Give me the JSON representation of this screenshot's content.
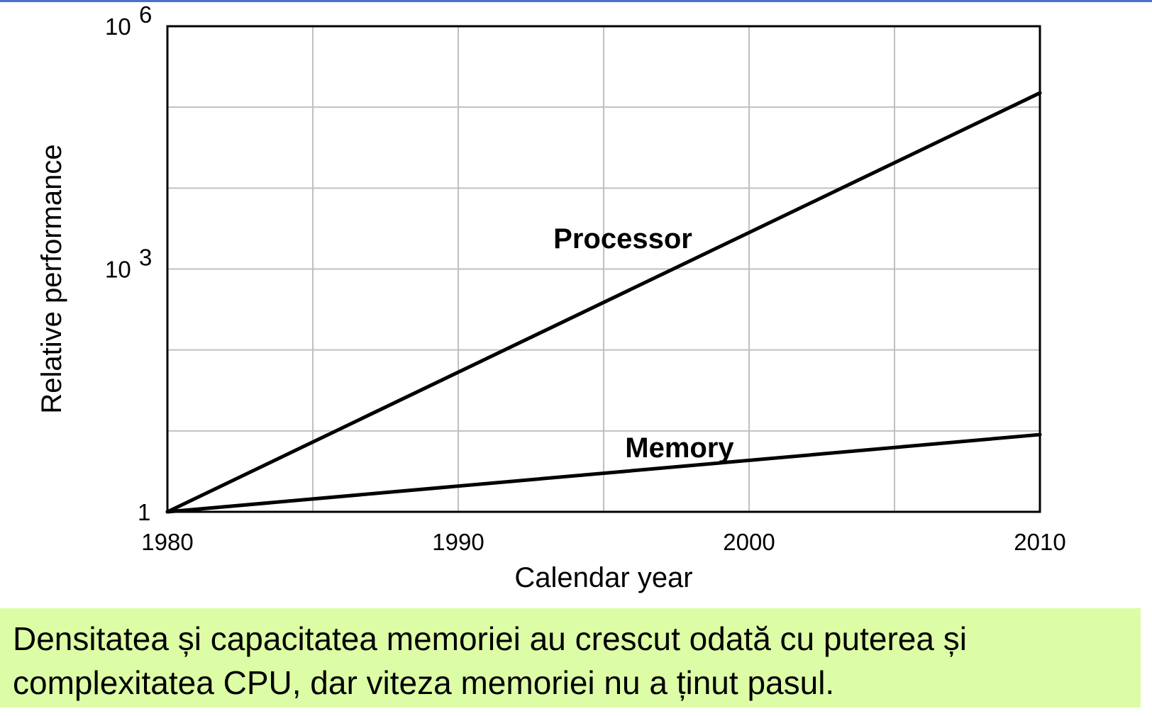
{
  "chart_data": {
    "type": "line",
    "title": "",
    "xlabel": "Calendar year",
    "ylabel": "Relative performance",
    "x_ticks": [
      1980,
      1990,
      2000,
      2010
    ],
    "y_scale": "log",
    "y_ticks": [
      {
        "value": 1,
        "base": "1",
        "exp": ""
      },
      {
        "value": 1000,
        "base": "10",
        "exp": "3"
      },
      {
        "value": 1000000,
        "base": "10",
        "exp": "6"
      }
    ],
    "xlim": [
      1980,
      2010
    ],
    "ylim": [
      1,
      1000000
    ],
    "grid": true,
    "series": [
      {
        "name": "Processor",
        "x": [
          1980,
          2010
        ],
        "y": [
          1,
          150000
        ]
      },
      {
        "name": "Memory",
        "x": [
          1980,
          2010
        ],
        "y": [
          1,
          9
        ]
      }
    ],
    "line_color": "#000000",
    "grid_color": "#c0c0c0"
  },
  "caption": {
    "text": "Densitatea și capacitatea memoriei au crescut odată cu puterea și complexitatea CPU, dar viteza memoriei nu a ținut pasul.",
    "background": "#ddfca6"
  },
  "colors": {
    "top_rule": "#4a6fd1"
  }
}
